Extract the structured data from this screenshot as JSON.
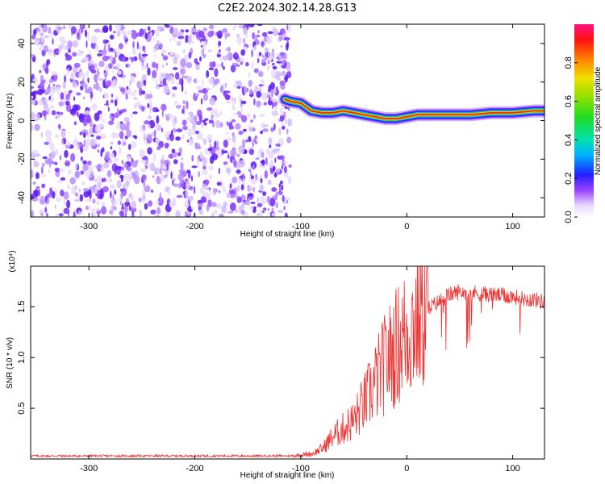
{
  "title": "C2E2.2024.302.14.28.G13",
  "chart_data": [
    {
      "type": "heatmap",
      "panel": "spectrogram",
      "xlabel": "Height of straight line (km)",
      "ylabel": "Frequency (Hz)",
      "xlim": [
        -355,
        130
      ],
      "ylim": [
        -50,
        50
      ],
      "xticks": [
        -300,
        -200,
        -100,
        0,
        100
      ],
      "yticks": [
        -40,
        -20,
        0,
        20,
        40
      ],
      "noise_region_x": [
        -355,
        -110
      ],
      "trace": {
        "x": [
          -115,
          -110,
          -100,
          -90,
          -80,
          -70,
          -60,
          -50,
          -40,
          -30,
          -20,
          -10,
          0,
          10,
          20,
          40,
          60,
          80,
          100,
          120,
          130
        ],
        "y": [
          11,
          10,
          9,
          5,
          4,
          4,
          5,
          4,
          3,
          2,
          1,
          1,
          2,
          3,
          3,
          3,
          3,
          4,
          4,
          5,
          5
        ]
      },
      "colorbar": {
        "label": "Normalized spectral amplitude",
        "range": [
          0,
          1
        ],
        "ticks": [
          0.0,
          0.2,
          0.4,
          0.6,
          0.8
        ]
      }
    },
    {
      "type": "line",
      "panel": "snr",
      "xlabel": "Height of straight line (km)",
      "ylabel": "SNR (10 * v/v)",
      "scale_label": "(x10⁴)",
      "xlim": [
        -355,
        130
      ],
      "ylim": [
        0,
        1.9
      ],
      "xticks": [
        -300,
        -200,
        -100,
        0,
        100
      ],
      "yticks": [
        0.5,
        1.0,
        1.5
      ],
      "series": [
        {
          "name": "SNR",
          "color": "#ee3333",
          "x": [
            -355,
            -300,
            -200,
            -110,
            -100,
            -90,
            -80,
            -70,
            -60,
            -50,
            -40,
            -30,
            -20,
            -10,
            0,
            10,
            20,
            30,
            40,
            50,
            60,
            70,
            80,
            90,
            100,
            110,
            120,
            130
          ],
          "values": [
            0.03,
            0.03,
            0.03,
            0.03,
            0.04,
            0.05,
            0.1,
            0.22,
            0.3,
            0.38,
            0.55,
            0.75,
            0.95,
            1.1,
            1.25,
            1.38,
            1.48,
            1.55,
            1.62,
            1.65,
            1.64,
            1.63,
            1.62,
            1.61,
            1.6,
            1.58,
            1.57,
            1.55
          ]
        }
      ]
    }
  ]
}
